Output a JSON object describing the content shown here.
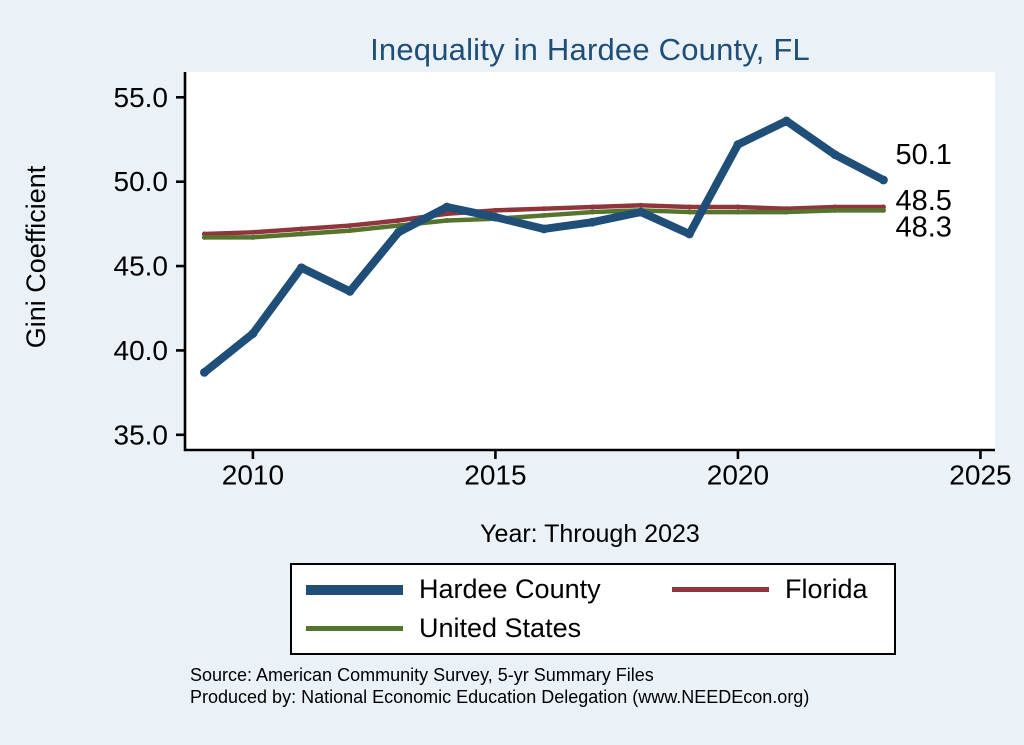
{
  "title": "Inequality in Hardee County, FL",
  "axis": {
    "ylabel": "Gini Coefficient",
    "xlabel": "Year: Through 2023"
  },
  "notes": {
    "line1": "Source: American Community Survey, 5-yr Summary Files",
    "line2": "Produced by: National Economic Education Delegation (www.NEEDEcon.org)"
  },
  "colors": {
    "background": "#eaf2f8",
    "plot_background": "#ffffff",
    "title_text": "#1f4e79",
    "axis_line": "#000000",
    "tick_text": "#000000",
    "end_label_text": "#000000"
  },
  "chart_data": {
    "type": "line",
    "title": "Inequality in Hardee County, FL",
    "xlabel": "Year: Through 2023",
    "ylabel": "Gini Coefficient",
    "x": [
      2009,
      2010,
      2011,
      2012,
      2013,
      2014,
      2015,
      2016,
      2017,
      2018,
      2019,
      2020,
      2021,
      2022,
      2023
    ],
    "series": [
      {
        "name": "Hardee County",
        "color": "#1f4e79",
        "line_width": 8,
        "values": [
          38.7,
          41.0,
          44.9,
          43.5,
          47.0,
          48.5,
          47.9,
          47.2,
          47.6,
          48.2,
          46.9,
          52.2,
          53.6,
          51.6,
          50.1
        ],
        "end_label": "50.1"
      },
      {
        "name": "Florida",
        "color": "#90353b",
        "line_width": 4.5,
        "values": [
          46.9,
          47.0,
          47.2,
          47.4,
          47.7,
          48.1,
          48.3,
          48.4,
          48.5,
          48.6,
          48.5,
          48.5,
          48.4,
          48.5,
          48.5
        ],
        "end_label": "48.5"
      },
      {
        "name": "United States",
        "color": "#55752f",
        "line_width": 4.5,
        "values": [
          46.7,
          46.7,
          46.9,
          47.1,
          47.4,
          47.7,
          47.8,
          48.0,
          48.2,
          48.3,
          48.2,
          48.2,
          48.2,
          48.3,
          48.3
        ],
        "end_label": "48.3"
      }
    ],
    "x_ticks": [
      "2010",
      "2015",
      "2020",
      "2025"
    ],
    "x_tick_values": [
      2010,
      2015,
      2020,
      2025
    ],
    "y_ticks": [
      "35.0",
      "40.0",
      "45.0",
      "50.0",
      "55.0"
    ],
    "y_tick_values": [
      35,
      40,
      45,
      50,
      55
    ],
    "xlim": [
      2008.6,
      2025.3
    ],
    "ylim": [
      34.1,
      56.5
    ],
    "grid": false,
    "legend_position": "bottom"
  }
}
